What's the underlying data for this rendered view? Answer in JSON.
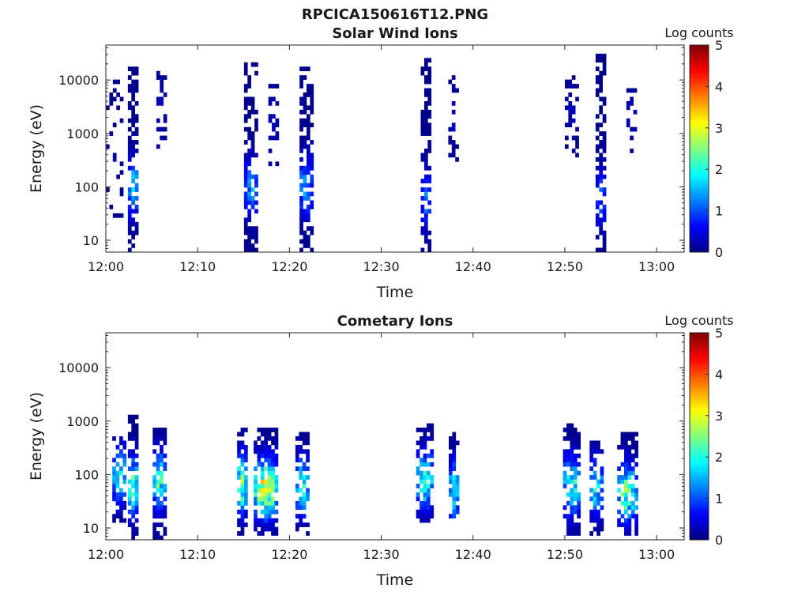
{
  "figure_title": "RPCICA150616T12.PNG",
  "chart_data": [
    {
      "type": "heatmap",
      "title": "Solar Wind Ions",
      "xlabel": "Time",
      "ylabel": "Energy (eV)",
      "x_ticks": [
        "12:00",
        "12:10",
        "12:20",
        "12:30",
        "12:40",
        "12:50",
        "13:00"
      ],
      "x_range_minutes": [
        0,
        63
      ],
      "y_scale": "log",
      "y_ticks": [
        10,
        100,
        1000,
        10000
      ],
      "y_tick_labels": [
        "10",
        "100",
        "1000",
        "10000"
      ],
      "y_range": [
        6,
        45000
      ],
      "colorbar": {
        "label": "Log counts",
        "min": 0,
        "max": 5,
        "ticks": [
          "0",
          "1",
          "2",
          "3",
          "4",
          "5"
        ],
        "colormap": "jet"
      },
      "bursts": [
        {
          "center_min": 3.0,
          "width_min": 1.2,
          "e_low": 6,
          "e_high": 16000,
          "peak_log_counts": 1.9,
          "peak_energy": 100,
          "density": 0.75
        },
        {
          "center_min": 6.0,
          "width_min": 1.0,
          "e_low": 600,
          "e_high": 17000,
          "peak_log_counts": 0.3,
          "peak_energy": 3000,
          "density": 0.45
        },
        {
          "center_min": 1.0,
          "width_min": 2.0,
          "e_low": 30,
          "e_high": 9000,
          "peak_log_counts": 0.2,
          "peak_energy": 500,
          "density": 0.12
        },
        {
          "center_min": 15.8,
          "width_min": 1.5,
          "e_low": 6,
          "e_high": 20000,
          "peak_log_counts": 1.6,
          "peak_energy": 100,
          "density": 0.72
        },
        {
          "center_min": 18.3,
          "width_min": 1.2,
          "e_low": 250,
          "e_high": 14000,
          "peak_log_counts": 0.3,
          "peak_energy": 2000,
          "density": 0.35
        },
        {
          "center_min": 21.8,
          "width_min": 1.4,
          "e_low": 6,
          "e_high": 17000,
          "peak_log_counts": 1.7,
          "peak_energy": 100,
          "density": 0.72
        },
        {
          "center_min": 34.9,
          "width_min": 1.2,
          "e_low": 6,
          "e_high": 25000,
          "peak_log_counts": 1.3,
          "peak_energy": 60,
          "density": 0.72
        },
        {
          "center_min": 37.8,
          "width_min": 1.0,
          "e_low": 300,
          "e_high": 14000,
          "peak_log_counts": 0.3,
          "peak_energy": 2000,
          "density": 0.42
        },
        {
          "center_min": 54.0,
          "width_min": 1.3,
          "e_low": 6,
          "e_high": 30000,
          "peak_log_counts": 1.2,
          "peak_energy": 60,
          "density": 0.72
        },
        {
          "center_min": 50.8,
          "width_min": 1.6,
          "e_low": 400,
          "e_high": 11000,
          "peak_log_counts": 0.3,
          "peak_energy": 2000,
          "density": 0.35
        },
        {
          "center_min": 57.2,
          "width_min": 1.0,
          "e_low": 450,
          "e_high": 9000,
          "peak_log_counts": 0.3,
          "peak_energy": 2000,
          "density": 0.42
        }
      ]
    },
    {
      "type": "heatmap",
      "title": "Cometary Ions",
      "xlabel": "Time",
      "ylabel": "Energy (eV)",
      "x_ticks": [
        "12:00",
        "12:10",
        "12:20",
        "12:30",
        "12:40",
        "12:50",
        "13:00"
      ],
      "x_range_minutes": [
        0,
        63
      ],
      "y_scale": "log",
      "y_ticks": [
        10,
        100,
        1000,
        10000
      ],
      "y_tick_labels": [
        "10",
        "100",
        "1000",
        "10000"
      ],
      "y_range": [
        6,
        45000
      ],
      "colorbar": {
        "label": "Log counts",
        "min": 0,
        "max": 5,
        "ticks": [
          "0",
          "1",
          "2",
          "3",
          "4",
          "5"
        ],
        "colormap": "jet"
      },
      "bursts": [
        {
          "center_min": 1.5,
          "width_min": 1.6,
          "e_low": 15,
          "e_high": 500,
          "peak_log_counts": 2.1,
          "peak_energy": 100,
          "density": 0.8
        },
        {
          "center_min": 3.0,
          "width_min": 1.2,
          "e_low": 6,
          "e_high": 1200,
          "peak_log_counts": 2.7,
          "peak_energy": 60,
          "density": 0.82
        },
        {
          "center_min": 5.8,
          "width_min": 1.4,
          "e_low": 6,
          "e_high": 700,
          "peak_log_counts": 2.6,
          "peak_energy": 80,
          "density": 0.8
        },
        {
          "center_min": 14.9,
          "width_min": 1.2,
          "e_low": 8,
          "e_high": 700,
          "peak_log_counts": 3.2,
          "peak_energy": 70,
          "density": 0.85
        },
        {
          "center_min": 17.4,
          "width_min": 2.6,
          "e_low": 8,
          "e_high": 700,
          "peak_log_counts": 3.6,
          "peak_energy": 55,
          "density": 0.88
        },
        {
          "center_min": 21.4,
          "width_min": 1.5,
          "e_low": 8,
          "e_high": 600,
          "peak_log_counts": 2.4,
          "peak_energy": 60,
          "density": 0.75
        },
        {
          "center_min": 34.8,
          "width_min": 2.0,
          "e_low": 15,
          "e_high": 800,
          "peak_log_counts": 2.4,
          "peak_energy": 80,
          "density": 0.82
        },
        {
          "center_min": 37.9,
          "width_min": 1.1,
          "e_low": 15,
          "e_high": 700,
          "peak_log_counts": 2.3,
          "peak_energy": 50,
          "density": 0.82
        },
        {
          "center_min": 50.8,
          "width_min": 2.0,
          "e_low": 8,
          "e_high": 900,
          "peak_log_counts": 2.5,
          "peak_energy": 60,
          "density": 0.82
        },
        {
          "center_min": 53.4,
          "width_min": 1.4,
          "e_low": 8,
          "e_high": 600,
          "peak_log_counts": 2.2,
          "peak_energy": 60,
          "density": 0.75
        },
        {
          "center_min": 56.8,
          "width_min": 2.2,
          "e_low": 8,
          "e_high": 600,
          "peak_log_counts": 2.8,
          "peak_energy": 45,
          "density": 0.82
        }
      ]
    }
  ]
}
